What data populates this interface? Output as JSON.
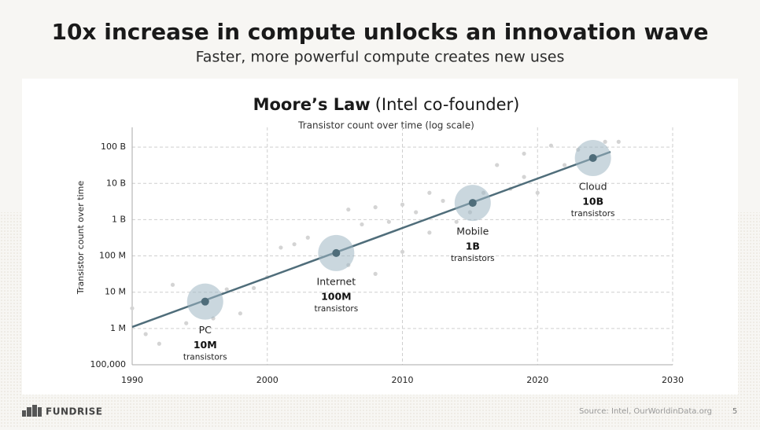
{
  "header": {
    "title": "10x increase in compute unlocks an innovation wave",
    "subtitle": "Faster, more powerful compute creates new uses"
  },
  "chart_data": {
    "type": "line",
    "title": "Moore’s Law",
    "title_note": "(Intel co-founder)",
    "subtitle": "Transistor count over time (log scale)",
    "y_label": "Transistor count over time",
    "log_y": true,
    "grid": true,
    "xlim": [
      1990,
      2030
    ],
    "xticks": [
      1990,
      2000,
      2010,
      2020,
      2030
    ],
    "ylim": [
      100000,
      350000000000
    ],
    "yticks": [
      {
        "value": 100000,
        "label": "100,000"
      },
      {
        "value": 1000000,
        "label": "1 M"
      },
      {
        "value": 10000000,
        "label": "10 M"
      },
      {
        "value": 100000000,
        "label": "100 M"
      },
      {
        "value": 1000000000,
        "label": "1 B"
      },
      {
        "value": 10000000000,
        "label": "10 B"
      },
      {
        "value": 100000000000,
        "label": "100 B"
      }
    ],
    "series": [
      {
        "type": "scatter",
        "color": "#d4d4d4",
        "x": [
          1990,
          1991,
          1992,
          1993,
          1994,
          1996,
          1997,
          1998,
          1999,
          2000,
          2001,
          2002,
          2003,
          2006,
          2006,
          2007,
          2008,
          2008,
          2009,
          2010,
          2010,
          2011,
          2012,
          2012,
          2013,
          2014,
          2015,
          2016,
          2017,
          2018,
          2019,
          2019,
          2020,
          2021,
          2022,
          2023,
          2024,
          2025,
          2026
        ],
        "values": [
          3600000,
          700000,
          380000,
          16000000,
          1400000,
          1900000,
          12000000,
          2600000,
          13000000,
          26000000,
          170000000,
          210000000,
          320000000,
          56000000,
          1900000000,
          740000000,
          2200000000,
          32000000,
          870000000,
          2600000000,
          130000000,
          1600000000,
          5500000000,
          440000000,
          3300000000,
          870000000,
          1600000000,
          5500000000,
          32000000000,
          7100000000,
          15000000000,
          66000000000,
          5500000000,
          110000000000,
          32000000000,
          85000000000,
          51000000000,
          140000000000,
          140000000000
        ]
      },
      {
        "type": "line",
        "color": "#4f6d7a",
        "x": [
          1990,
          2025.4
        ],
        "values": [
          1100000,
          74000000000
        ]
      }
    ],
    "annotations": [
      {
        "x": 1995.4,
        "y": 5500000,
        "label": "PC",
        "count": "10M",
        "unit": "transistors"
      },
      {
        "x": 2005.1,
        "y": 120000000,
        "label": "Internet",
        "count": "100M",
        "unit": "transistors"
      },
      {
        "x": 2015.2,
        "y": 2900000000,
        "label": "Mobile",
        "count": "1B",
        "unit": "transistors"
      },
      {
        "x": 2024.1,
        "y": 50000000000,
        "label": "Cloud",
        "count": "10B",
        "unit": "transistors"
      }
    ]
  },
  "footer": {
    "brand": "FUNDRISE",
    "source": "Source: Intel, OurWorldinData.org",
    "page": "5"
  }
}
